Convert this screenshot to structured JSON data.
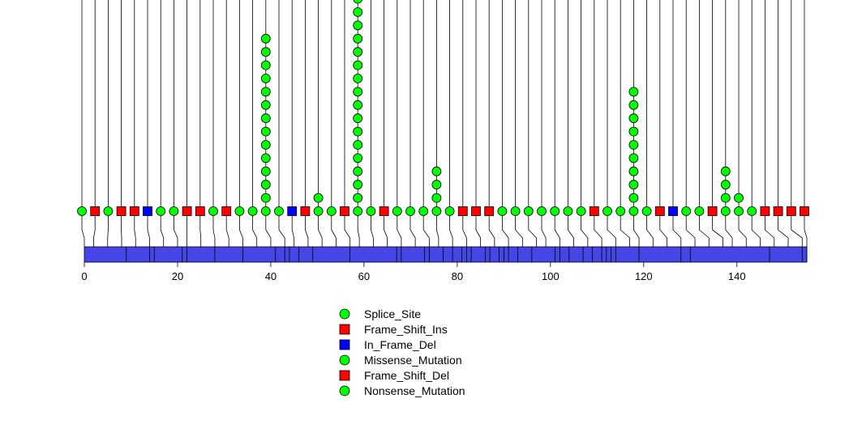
{
  "chart_data": {
    "type": "lollipop",
    "title": "",
    "xlabel": "",
    "ylabel": "",
    "x_range": [
      0,
      155
    ],
    "x_ticks": [
      "0",
      "20",
      "40",
      "60",
      "80",
      "100",
      "120",
      "140"
    ],
    "colors": {
      "protein_bar": "#4646e6",
      "Splice_Site": "#00ff00",
      "Frame_Shift_Ins": "#ff0000",
      "In_Frame_Del": "#0000ff",
      "Missense_Mutation": "#00ff00",
      "Frame_Shift_Del": "#ff0000",
      "Nonsense_Mutation": "#00ff00"
    },
    "domain_boundaries": [
      9,
      14,
      15,
      21,
      22,
      28,
      34,
      41,
      43,
      44,
      46,
      49,
      57,
      67,
      68,
      73,
      74,
      77,
      79,
      81,
      82,
      83,
      86,
      87,
      89,
      90,
      91,
      93,
      96,
      101,
      102,
      104,
      107,
      109,
      111,
      112,
      113,
      114,
      119,
      128,
      130,
      147,
      154,
      155
    ],
    "mutations": [
      {
        "pos": 0,
        "type": "Missense_Mutation",
        "count": 1
      },
      {
        "pos": 2,
        "type": "Frame_Shift_Del",
        "count": 1
      },
      {
        "pos": 5,
        "type": "Missense_Mutation",
        "count": 1
      },
      {
        "pos": 8,
        "type": "Frame_Shift_Del",
        "count": 1
      },
      {
        "pos": 11,
        "type": "Frame_Shift_Del",
        "count": 1
      },
      {
        "pos": 14,
        "type": "In_Frame_Del",
        "count": 1
      },
      {
        "pos": 17,
        "type": "Missense_Mutation",
        "count": 1
      },
      {
        "pos": 20,
        "type": "Missense_Mutation",
        "count": 1
      },
      {
        "pos": 22,
        "type": "Frame_Shift_Del",
        "count": 1
      },
      {
        "pos": 25,
        "type": "Frame_Shift_Del",
        "count": 1
      },
      {
        "pos": 28,
        "type": "Missense_Mutation",
        "count": 1
      },
      {
        "pos": 31,
        "type": "Frame_Shift_Del",
        "count": 1
      },
      {
        "pos": 34,
        "type": "Missense_Mutation",
        "count": 1
      },
      {
        "pos": 37,
        "type": "Missense_Mutation",
        "count": 1
      },
      {
        "pos": 40,
        "type": "Missense_Mutation",
        "count": 14
      },
      {
        "pos": 43,
        "type": "Missense_Mutation",
        "count": 1
      },
      {
        "pos": 45,
        "type": "In_Frame_Del",
        "count": 1
      },
      {
        "pos": 48,
        "type": "Frame_Shift_Del",
        "count": 1
      },
      {
        "pos": 51,
        "type": "Missense_Mutation",
        "count": 2
      },
      {
        "pos": 54,
        "type": "Missense_Mutation",
        "count": 1
      },
      {
        "pos": 57,
        "type": "Frame_Shift_Del",
        "count": 1
      },
      {
        "pos": 59,
        "type": "Missense_Mutation",
        "count": 17
      },
      {
        "pos": 62,
        "type": "Missense_Mutation",
        "count": 1
      },
      {
        "pos": 65,
        "type": "Frame_Shift_Del",
        "count": 1
      },
      {
        "pos": 68,
        "type": "Missense_Mutation",
        "count": 1
      },
      {
        "pos": 71,
        "type": "Missense_Mutation",
        "count": 1
      },
      {
        "pos": 74,
        "type": "Missense_Mutation",
        "count": 1
      },
      {
        "pos": 76,
        "type": "Missense_Mutation",
        "count": 4
      },
      {
        "pos": 79,
        "type": "Missense_Mutation",
        "count": 1
      },
      {
        "pos": 82,
        "type": "Frame_Shift_Del",
        "count": 1
      },
      {
        "pos": 85,
        "type": "Frame_Shift_Del",
        "count": 1
      },
      {
        "pos": 88,
        "type": "Frame_Shift_Del",
        "count": 1
      },
      {
        "pos": 91,
        "type": "Missense_Mutation",
        "count": 1
      },
      {
        "pos": 94,
        "type": "Missense_Mutation",
        "count": 1
      },
      {
        "pos": 97,
        "type": "Missense_Mutation",
        "count": 1
      },
      {
        "pos": 99,
        "type": "Missense_Mutation",
        "count": 1
      },
      {
        "pos": 102,
        "type": "Missense_Mutation",
        "count": 1
      },
      {
        "pos": 105,
        "type": "Missense_Mutation",
        "count": 1
      },
      {
        "pos": 108,
        "type": "Missense_Mutation",
        "count": 1
      },
      {
        "pos": 111,
        "type": "Frame_Shift_Del",
        "count": 1
      },
      {
        "pos": 114,
        "type": "Missense_Mutation",
        "count": 1
      },
      {
        "pos": 117,
        "type": "Missense_Mutation",
        "count": 1
      },
      {
        "pos": 119,
        "type": "Missense_Mutation",
        "count": 10
      },
      {
        "pos": 122,
        "type": "Missense_Mutation",
        "count": 1
      },
      {
        "pos": 125,
        "type": "Frame_Shift_Del",
        "count": 1
      },
      {
        "pos": 128,
        "type": "In_Frame_Del",
        "count": 1
      },
      {
        "pos": 131,
        "type": "Missense_Mutation",
        "count": 1
      },
      {
        "pos": 134,
        "type": "Missense_Mutation",
        "count": 1
      },
      {
        "pos": 137,
        "type": "Frame_Shift_Del",
        "count": 1
      },
      {
        "pos": 139,
        "type": "Missense_Mutation",
        "count": 4
      },
      {
        "pos": 142,
        "type": "Missense_Mutation",
        "count": 2
      },
      {
        "pos": 145,
        "type": "Missense_Mutation",
        "count": 1
      },
      {
        "pos": 148,
        "type": "Frame_Shift_Del",
        "count": 1
      },
      {
        "pos": 151,
        "type": "Frame_Shift_Del",
        "count": 1
      },
      {
        "pos": 154,
        "type": "Frame_Shift_Del",
        "count": 1
      },
      {
        "pos": 157,
        "type": "Frame_Shift_Del",
        "count": 1
      }
    ],
    "legend": [
      {
        "label": "Splice_Site",
        "shape": "circle",
        "color": "#00ff00"
      },
      {
        "label": "Frame_Shift_Ins",
        "shape": "square",
        "color": "#ff0000"
      },
      {
        "label": "In_Frame_Del",
        "shape": "square",
        "color": "#0000ff"
      },
      {
        "label": "Missense_Mutation",
        "shape": "circle",
        "color": "#00ff00"
      },
      {
        "label": "Frame_Shift_Del",
        "shape": "square",
        "color": "#ff0000"
      },
      {
        "label": "Nonsense_Mutation",
        "shape": "circle",
        "color": "#00ff00"
      }
    ],
    "legend_position": "bottom-center",
    "grid": false
  }
}
